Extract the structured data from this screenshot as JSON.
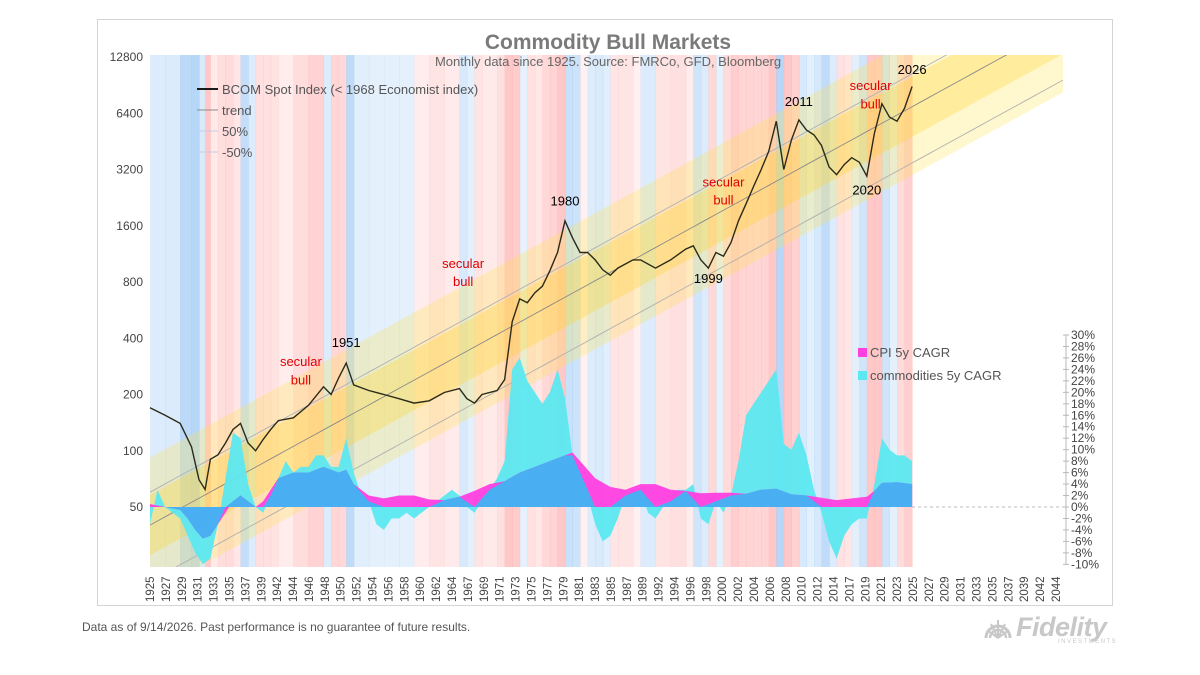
{
  "chart_data": {
    "type": "line",
    "title": "Commodity Bull Markets",
    "subtitle": "Monthly data since 1925.  Source: FMRCo, GFD, Bloomberg",
    "x_range": [
      1925,
      2046
    ],
    "left_axis": {
      "scale": "log2",
      "range": [
        50,
        12800
      ],
      "ticks": [
        12800,
        6400,
        3200,
        1600,
        800,
        400,
        200,
        100,
        50
      ]
    },
    "right_axis": {
      "scale": "linear",
      "unit": "%",
      "range": [
        -10,
        30
      ],
      "tick_labels": [
        "30%",
        "28%",
        "26%",
        "24%",
        "22%",
        "20%",
        "18%",
        "16%",
        "14%",
        "12%",
        "10%",
        "8%",
        "6%",
        "4%",
        "2%",
        "0%",
        "-2%",
        "-4%",
        "-6%",
        "-8%",
        "-10%"
      ]
    },
    "x_tick_labels": [
      "1925",
      "1927",
      "1929",
      "1931",
      "1933",
      "1935",
      "1937",
      "1939",
      "1942",
      "1944",
      "1946",
      "1948",
      "1950",
      "1952",
      "1954",
      "1956",
      "1958",
      "1960",
      "1962",
      "1964",
      "1967",
      "1969",
      "1971",
      "1973",
      "1975",
      "1977",
      "1979",
      "1981",
      "1983",
      "1985",
      "1987",
      "1989",
      "1992",
      "1994",
      "1996",
      "1998",
      "2000",
      "2002",
      "2004",
      "2006",
      "2008",
      "2010",
      "2012",
      "2014",
      "2017",
      "2019",
      "2021",
      "2023",
      "2025",
      "2027",
      "2029",
      "2031",
      "2033",
      "2035",
      "2037",
      "2039",
      "2042",
      "2044"
    ],
    "legend_top": [
      "BCOM Spot Index (< 1968 Economist index)",
      "trend",
      "50%",
      "-50%"
    ],
    "legend_bottom": [
      "CPI 5y CAGR",
      "commodities 5y CAGR"
    ],
    "series": [
      {
        "name": "BCOM Spot Index (< 1968 Economist index)",
        "axis": "left",
        "color": "#2b2b1a",
        "points": [
          [
            1925,
            170
          ],
          [
            1927,
            155
          ],
          [
            1929,
            140
          ],
          [
            1930.5,
            105
          ],
          [
            1931.5,
            70
          ],
          [
            1932.3,
            62
          ],
          [
            1933,
            90
          ],
          [
            1934,
            95
          ],
          [
            1935,
            110
          ],
          [
            1936,
            130
          ],
          [
            1937,
            140
          ],
          [
            1938,
            110
          ],
          [
            1939,
            100
          ],
          [
            1940,
            115
          ],
          [
            1941,
            130
          ],
          [
            1942,
            145
          ],
          [
            1944,
            150
          ],
          [
            1946,
            175
          ],
          [
            1948,
            220
          ],
          [
            1949,
            200
          ],
          [
            1950,
            245
          ],
          [
            1951,
            295
          ],
          [
            1952,
            225
          ],
          [
            1954,
            210
          ],
          [
            1956,
            200
          ],
          [
            1958,
            190
          ],
          [
            1960,
            180
          ],
          [
            1962,
            185
          ],
          [
            1964,
            205
          ],
          [
            1966,
            215
          ],
          [
            1967,
            190
          ],
          [
            1968,
            180
          ],
          [
            1969,
            200
          ],
          [
            1971,
            210
          ],
          [
            1972,
            240
          ],
          [
            1973,
            490
          ],
          [
            1974,
            650
          ],
          [
            1975,
            620
          ],
          [
            1976,
            700
          ],
          [
            1977,
            760
          ],
          [
            1978,
            920
          ],
          [
            1979,
            1150
          ],
          [
            1980,
            1700
          ],
          [
            1981,
            1380
          ],
          [
            1982,
            1150
          ],
          [
            1983,
            1150
          ],
          [
            1984,
            1050
          ],
          [
            1985,
            930
          ],
          [
            1986,
            870
          ],
          [
            1987,
            950
          ],
          [
            1989,
            1050
          ],
          [
            1990,
            1050
          ],
          [
            1992,
            950
          ],
          [
            1994,
            1050
          ],
          [
            1996,
            1200
          ],
          [
            1997,
            1250
          ],
          [
            1998,
            1050
          ],
          [
            1999,
            950
          ],
          [
            2000,
            1150
          ],
          [
            2001,
            1100
          ],
          [
            2002,
            1300
          ],
          [
            2003,
            1700
          ],
          [
            2004,
            2100
          ],
          [
            2005,
            2600
          ],
          [
            2006,
            3200
          ],
          [
            2007,
            4000
          ],
          [
            2008,
            5800
          ],
          [
            2009,
            3200
          ],
          [
            2010,
            4600
          ],
          [
            2011,
            5900
          ],
          [
            2012,
            5200
          ],
          [
            2013,
            4900
          ],
          [
            2014,
            4300
          ],
          [
            2015,
            3300
          ],
          [
            2016,
            3000
          ],
          [
            2017,
            3400
          ],
          [
            2018,
            3700
          ],
          [
            2019,
            3500
          ],
          [
            2020,
            2950
          ],
          [
            2021,
            5000
          ],
          [
            2022,
            7200
          ],
          [
            2023,
            6100
          ],
          [
            2024,
            5800
          ],
          [
            2025,
            6800
          ],
          [
            2026,
            8900
          ]
        ]
      },
      {
        "name": "commodities 5y CAGR",
        "axis": "right",
        "color": "#5ce8f0",
        "points": [
          [
            1925,
            -3
          ],
          [
            1926,
            3
          ],
          [
            1927,
            0
          ],
          [
            1929,
            -2
          ],
          [
            1930,
            -5
          ],
          [
            1931,
            -8
          ],
          [
            1932,
            -10
          ],
          [
            1933,
            -9
          ],
          [
            1934,
            -3
          ],
          [
            1935,
            5
          ],
          [
            1936,
            13
          ],
          [
            1937,
            12
          ],
          [
            1938,
            4
          ],
          [
            1939,
            0
          ],
          [
            1940,
            -1
          ],
          [
            1941,
            2
          ],
          [
            1942,
            5
          ],
          [
            1943,
            8
          ],
          [
            1944,
            6
          ],
          [
            1945,
            7
          ],
          [
            1946,
            7
          ],
          [
            1947,
            9
          ],
          [
            1948,
            9
          ],
          [
            1949,
            7
          ],
          [
            1950,
            7
          ],
          [
            1951,
            12
          ],
          [
            1952,
            6
          ],
          [
            1953,
            2
          ],
          [
            1954,
            1
          ],
          [
            1955,
            -3
          ],
          [
            1956,
            -4
          ],
          [
            1957,
            -2
          ],
          [
            1958,
            -2
          ],
          [
            1959,
            -1
          ],
          [
            1960,
            -2
          ],
          [
            1961,
            -1
          ],
          [
            1962,
            0
          ],
          [
            1963,
            1
          ],
          [
            1964,
            2
          ],
          [
            1965,
            3
          ],
          [
            1966,
            2
          ],
          [
            1967,
            0
          ],
          [
            1968,
            -1
          ],
          [
            1969,
            1
          ],
          [
            1970,
            3
          ],
          [
            1971,
            5
          ],
          [
            1972,
            8
          ],
          [
            1973,
            24
          ],
          [
            1974,
            26
          ],
          [
            1975,
            22
          ],
          [
            1976,
            20
          ],
          [
            1977,
            18
          ],
          [
            1978,
            20
          ],
          [
            1979,
            24
          ],
          [
            1980,
            19
          ],
          [
            1981,
            9
          ],
          [
            1982,
            6
          ],
          [
            1983,
            2
          ],
          [
            1984,
            -3
          ],
          [
            1985,
            -6
          ],
          [
            1986,
            -5
          ],
          [
            1987,
            -2
          ],
          [
            1988,
            2
          ],
          [
            1989,
            3
          ],
          [
            1990,
            3
          ],
          [
            1991,
            -1
          ],
          [
            1992,
            -2
          ],
          [
            1993,
            0
          ],
          [
            1994,
            1
          ],
          [
            1995,
            3
          ],
          [
            1996,
            3
          ],
          [
            1997,
            4
          ],
          [
            1998,
            -2
          ],
          [
            1999,
            -3
          ],
          [
            2000,
            1
          ],
          [
            2001,
            -1
          ],
          [
            2002,
            2
          ],
          [
            2003,
            8
          ],
          [
            2004,
            16
          ],
          [
            2005,
            18
          ],
          [
            2006,
            20
          ],
          [
            2007,
            22
          ],
          [
            2008,
            24
          ],
          [
            2009,
            11
          ],
          [
            2010,
            10
          ],
          [
            2011,
            13
          ],
          [
            2012,
            9
          ],
          [
            2013,
            3
          ],
          [
            2014,
            -1
          ],
          [
            2015,
            -6
          ],
          [
            2016,
            -9
          ],
          [
            2017,
            -5
          ],
          [
            2018,
            -3
          ],
          [
            2019,
            -2
          ],
          [
            2020,
            -2
          ],
          [
            2021,
            4
          ],
          [
            2022,
            12
          ],
          [
            2023,
            10
          ],
          [
            2024,
            9
          ],
          [
            2025,
            9
          ],
          [
            2026,
            8
          ]
        ]
      },
      {
        "name": "CPI 5y CAGR",
        "axis": "right",
        "color": "#ff3fe0",
        "points": [
          [
            1925,
            0.5
          ],
          [
            1927,
            0
          ],
          [
            1929,
            -0.5
          ],
          [
            1930,
            -2
          ],
          [
            1931,
            -4
          ],
          [
            1932,
            -5.5
          ],
          [
            1933,
            -5
          ],
          [
            1934,
            -3
          ],
          [
            1935,
            -1
          ],
          [
            1936,
            1
          ],
          [
            1937,
            2
          ],
          [
            1938,
            1
          ],
          [
            1939,
            0
          ],
          [
            1940,
            1
          ],
          [
            1941,
            3
          ],
          [
            1942,
            5
          ],
          [
            1944,
            6
          ],
          [
            1946,
            6
          ],
          [
            1948,
            7
          ],
          [
            1950,
            6
          ],
          [
            1951,
            6.5
          ],
          [
            1952,
            4
          ],
          [
            1954,
            2
          ],
          [
            1956,
            1.5
          ],
          [
            1958,
            2
          ],
          [
            1960,
            2
          ],
          [
            1962,
            1.3
          ],
          [
            1964,
            1.2
          ],
          [
            1966,
            1.8
          ],
          [
            1968,
            2.8
          ],
          [
            1970,
            4
          ],
          [
            1972,
            4.5
          ],
          [
            1974,
            6
          ],
          [
            1976,
            7
          ],
          [
            1978,
            8
          ],
          [
            1980,
            9
          ],
          [
            1981,
            9.5
          ],
          [
            1982,
            8
          ],
          [
            1984,
            5
          ],
          [
            1986,
            3.5
          ],
          [
            1988,
            3
          ],
          [
            1990,
            4
          ],
          [
            1992,
            4
          ],
          [
            1994,
            3
          ],
          [
            1996,
            2.8
          ],
          [
            1998,
            2.4
          ],
          [
            2000,
            2.5
          ],
          [
            2002,
            2.5
          ],
          [
            2004,
            2.3
          ],
          [
            2006,
            3
          ],
          [
            2008,
            3.2
          ],
          [
            2010,
            2.2
          ],
          [
            2012,
            2
          ],
          [
            2014,
            1.6
          ],
          [
            2016,
            1.2
          ],
          [
            2018,
            1.5
          ],
          [
            2020,
            1.8
          ],
          [
            2021,
            2.8
          ],
          [
            2022,
            4.2
          ],
          [
            2024,
            4.3
          ],
          [
            2026,
            4
          ]
        ]
      }
    ],
    "annotations": [
      {
        "text": "1951",
        "x": 1951,
        "y": 360,
        "color": "#000000"
      },
      {
        "text": "1980",
        "x": 1980,
        "y": 2050,
        "color": "#000000"
      },
      {
        "text": "1999",
        "x": 1999,
        "y": 790,
        "color": "#000000"
      },
      {
        "text": "2011",
        "x": 2011,
        "y": 7000,
        "color": "#000000"
      },
      {
        "text": "2020",
        "x": 2020,
        "y": 2350,
        "color": "#000000"
      },
      {
        "text": "2026",
        "x": 2026,
        "y": 10400,
        "color": "#000000"
      },
      {
        "text": "secular",
        "x": 1945,
        "y": 285,
        "color": "#e00000"
      },
      {
        "text": "bull",
        "x": 1945,
        "y": 226,
        "color": "#e00000"
      },
      {
        "text": "secular",
        "x": 1966.5,
        "y": 950,
        "color": "#e00000"
      },
      {
        "text": "bull",
        "x": 1966.5,
        "y": 760,
        "color": "#e00000"
      },
      {
        "text": "secular",
        "x": 2001,
        "y": 2600,
        "color": "#e00000"
      },
      {
        "text": "bull",
        "x": 2001,
        "y": 2080,
        "color": "#e00000"
      },
      {
        "text": "secular",
        "x": 2020.5,
        "y": 8500,
        "color": "#e00000"
      },
      {
        "text": "bull",
        "x": 2020.5,
        "y": 6800,
        "color": "#e00000"
      }
    ]
  },
  "footnote": "Data as of 9/14/2026. Past performance is no guarantee of future results.",
  "logo": {
    "text": "Fidelity",
    "sub": "INVESTMENTS"
  },
  "colors": {
    "title": "#7a7a7a",
    "frame": "#d4d4d4",
    "band": "#ffe14a",
    "cpi": "#ff3fe0",
    "commodities": "#5ce8f0",
    "blend": "#4aaef2",
    "trend": "#8a8a8a"
  }
}
